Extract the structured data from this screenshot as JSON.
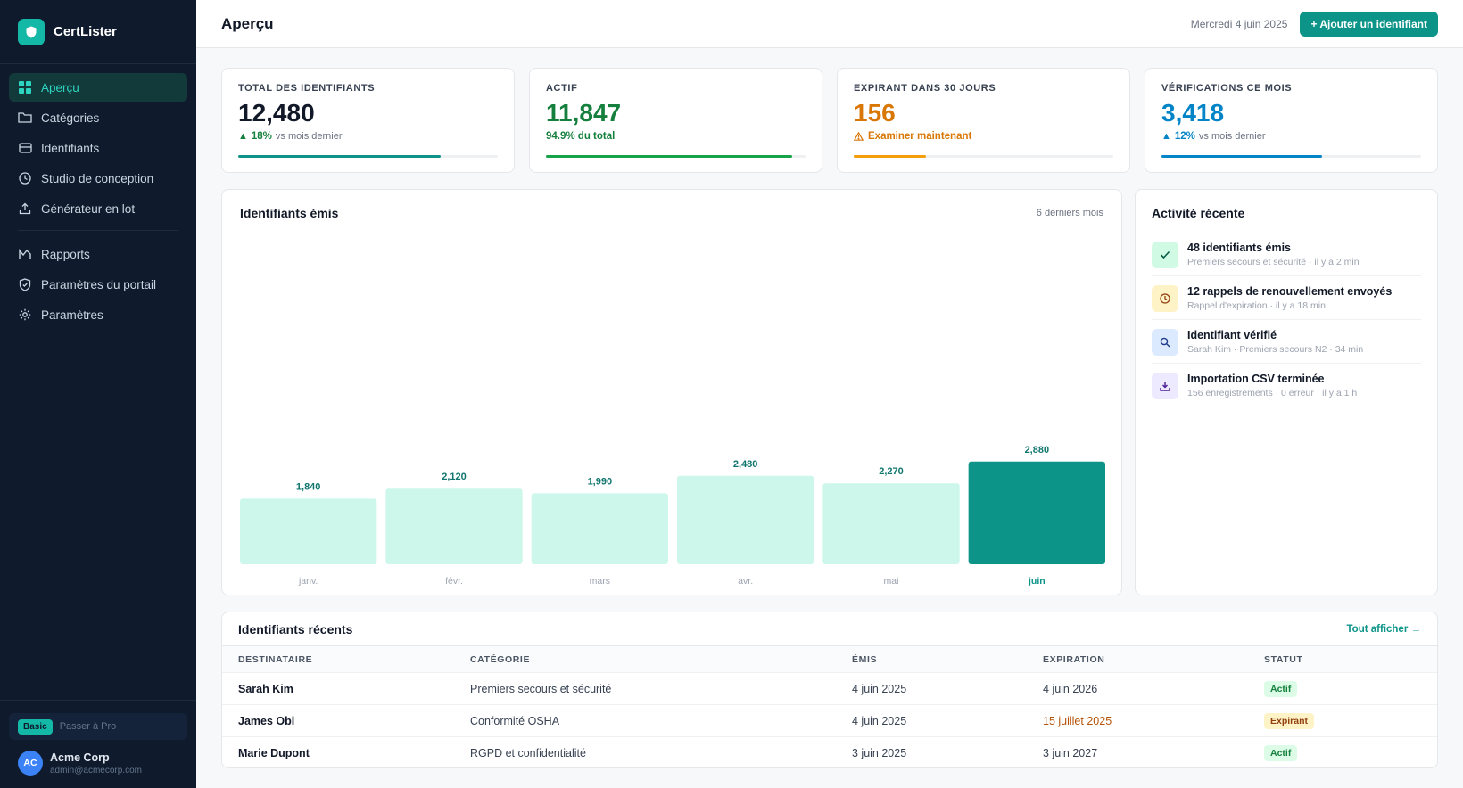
{
  "app": {
    "name": "CertLister"
  },
  "nav": {
    "items": [
      {
        "label": "Aperçu",
        "icon": "grid-icon",
        "active": true
      },
      {
        "label": "Catégories",
        "icon": "folder-icon"
      },
      {
        "label": "Identifiants",
        "icon": "credential-icon"
      },
      {
        "label": "Studio de conception",
        "icon": "design-icon"
      },
      {
        "label": "Générateur en lot",
        "icon": "upload-icon"
      }
    ],
    "items2": [
      {
        "label": "Rapports",
        "icon": "chart-icon"
      },
      {
        "label": "Paramètres du portail",
        "icon": "shield-icon"
      },
      {
        "label": "Paramètres",
        "icon": "gear-icon"
      }
    ]
  },
  "plan": {
    "badge": "Basic",
    "upgrade": "Passer à Pro"
  },
  "account": {
    "initials": "AC",
    "name": "Acme Corp",
    "email": "admin@acmecorp.com"
  },
  "header": {
    "title": "Aperçu",
    "date": "Mercredi 4 juin 2025",
    "add_button": "+ Ajouter un identifiant"
  },
  "stats": [
    {
      "label": "TOTAL DES IDENTIFIANTS",
      "value": "12,480",
      "delta": "18%",
      "delta_note": "vs mois dernier",
      "color": "#111827",
      "accent": "#0d9488",
      "progress": 0.78
    },
    {
      "label": "ACTIF",
      "value": "11,847",
      "note": "94.9% du total",
      "color": "#15803d",
      "accent": "#16a34a",
      "progress": 0.949
    },
    {
      "label": "EXPIRANT DANS 30 JOURS",
      "value": "156",
      "note": "Examiner maintenant",
      "color": "#d97706",
      "accent": "#f59e0b",
      "progress": 0.28
    },
    {
      "label": "VÉRIFICATIONS CE MOIS",
      "value": "3,418",
      "delta": "12%",
      "delta_note": "vs mois dernier",
      "color": "#0284c7",
      "accent": "#0284c7",
      "progress": 0.62
    }
  ],
  "chart": {
    "title": "Identifiants émis",
    "period": "6 derniers mois"
  },
  "chart_data": {
    "type": "bar",
    "categories": [
      "janv.",
      "févr.",
      "mars",
      "avr.",
      "mai",
      "juin"
    ],
    "values": [
      1840,
      2120,
      1990,
      2480,
      2270,
      2880
    ],
    "value_labels": [
      "1,840",
      "2,120",
      "1,990",
      "2,480",
      "2,270",
      "2,880"
    ],
    "highlight_index": 5,
    "colors": {
      "bar": "#ccf7ea",
      "highlight": "#0d9488",
      "label": "#0f766e"
    }
  },
  "activity": {
    "title": "Activité récente",
    "items": [
      {
        "title": "48 identifiants émis",
        "meta": "Premiers secours et sécurité · il y a 2 min",
        "icon": "check-icon",
        "bg": "#d1fae5",
        "fg": "#065f46"
      },
      {
        "title": "12 rappels de renouvellement envoyés",
        "meta": "Rappel d'expiration · il y a 18 min",
        "icon": "clock-icon",
        "bg": "#fef3c7",
        "fg": "#92400e"
      },
      {
        "title": "Identifiant vérifié",
        "meta": "Sarah Kim · Premiers secours N2 · 34 min",
        "icon": "search-icon",
        "bg": "#dbeafe",
        "fg": "#1e3a8a"
      },
      {
        "title": "Importation CSV terminée",
        "meta": "156 enregistrements · 0 erreur · il y a 1 h",
        "icon": "download-icon",
        "bg": "#ede9fe",
        "fg": "#4c1d95"
      }
    ]
  },
  "recent": {
    "title": "Identifiants récents",
    "view_all": "Tout afficher →",
    "columns": [
      "DESTINATAIRE",
      "CATÉGORIE",
      "ÉMIS",
      "EXPIRATION",
      "STATUT"
    ],
    "rows": [
      {
        "name": "Sarah Kim",
        "category": "Premiers secours et sécurité",
        "issued": "4 juin 2025",
        "expiry": "4 juin 2026",
        "status": "Actif",
        "warn": false
      },
      {
        "name": "James Obi",
        "category": "Conformité OSHA",
        "issued": "4 juin 2025",
        "expiry": "15 juillet 2025",
        "status": "Expirant",
        "warn": true
      },
      {
        "name": "Marie Dupont",
        "category": "RGPD et confidentialité",
        "issued": "3 juin 2025",
        "expiry": "3 juin 2027",
        "status": "Actif",
        "warn": false
      }
    ]
  }
}
